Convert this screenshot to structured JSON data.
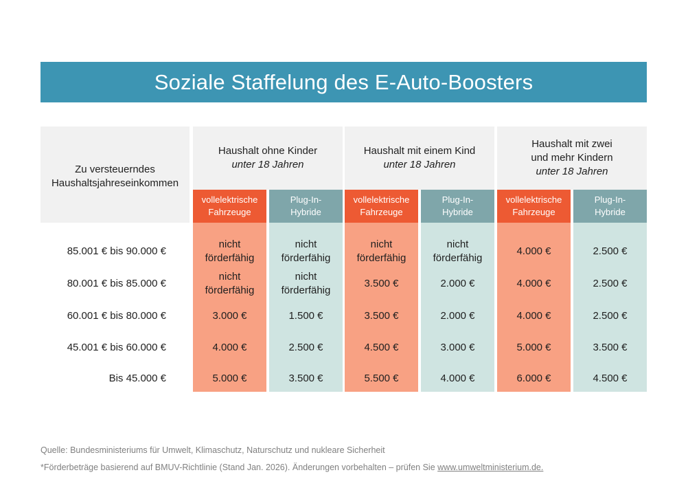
{
  "title": "Soziale Staffelung des E-Auto-Boosters",
  "income_header": [
    "Zu versteuerndes",
    "Haushaltsjahreseinkommen"
  ],
  "groups": [
    {
      "lines": [
        "Haushalt ohne Kinder"
      ],
      "sub": "unter 18 Jahren"
    },
    {
      "lines": [
        "Haushalt mit einem Kind"
      ],
      "sub": "unter 18 Jahren"
    },
    {
      "lines": [
        "Haushalt mit zwei",
        "und mehr Kindern"
      ],
      "sub": "unter 18 Jahren"
    }
  ],
  "sub_headers": {
    "bev": [
      "vollelektrische",
      "Fahrzeuge"
    ],
    "phev": [
      "Plug-In-",
      "Hybride"
    ]
  },
  "footer": {
    "source": "Quelle: Bundesministeriums für Umwelt, Klimaschutz, Naturschutz und nukleare Sicherheit",
    "note_prefix": "*Förderbeträge basierend auf BMUV-Richtlinie (Stand Jan. 2026). Änderungen vorbehalten – prüfen Sie ",
    "link": "www.umweltministerium.de."
  },
  "colors": {
    "title_bg": "#3d95b3",
    "bev_header": "#ed5a33",
    "phev_header": "#7fa6aa",
    "bev_cell": "#f8a183",
    "phev_cell": "#cfe4e1",
    "header_bg": "#f1f1f1"
  },
  "chart_data": {
    "type": "table",
    "title": "Soziale Staffelung des E-Auto-Boosters",
    "row_header": "Zu versteuerndes Haushaltsjahreseinkommen",
    "rows": [
      "85.001 € bis 90.000 €",
      "80.001 € bis 85.000 €",
      "60.001 € bis 80.000 €",
      "45.001 € bis 60.000 €",
      "Bis 45.000 €"
    ],
    "columns": [
      {
        "group": "Haushalt ohne Kinder unter 18 Jahren",
        "type": "vollelektrische Fahrzeuge",
        "values": [
          [
            "nicht",
            "förderfähig"
          ],
          [
            "nicht",
            "förderfähig"
          ],
          [
            "3.000 €"
          ],
          [
            "4.000 €"
          ],
          [
            "5.000 €"
          ]
        ]
      },
      {
        "group": "Haushalt ohne Kinder unter 18 Jahren",
        "type": "Plug-In-Hybride",
        "values": [
          [
            "nicht",
            "förderfähig"
          ],
          [
            "nicht",
            "förderfähig"
          ],
          [
            "1.500 €"
          ],
          [
            "2.500 €"
          ],
          [
            "3.500 €"
          ]
        ]
      },
      {
        "group": "Haushalt mit einem Kind unter 18 Jahren",
        "type": "vollelektrische Fahrzeuge",
        "values": [
          [
            "nicht",
            "förderfähig"
          ],
          [
            "3.500 €"
          ],
          [
            "3.500 €"
          ],
          [
            "4.500 €"
          ],
          [
            "5.500 €"
          ]
        ]
      },
      {
        "group": "Haushalt mit einem Kind unter 18 Jahren",
        "type": "Plug-In-Hybride",
        "values": [
          [
            "nicht",
            "förderfähig"
          ],
          [
            "2.000 €"
          ],
          [
            "2.000 €"
          ],
          [
            "3.000 €"
          ],
          [
            "4.000 €"
          ]
        ]
      },
      {
        "group": "Haushalt mit zwei und mehr Kindern unter 18 Jahren",
        "type": "vollelektrische Fahrzeuge",
        "values": [
          [
            "4.000 €"
          ],
          [
            "4.000 €"
          ],
          [
            "4.000 €"
          ],
          [
            "5.000 €"
          ],
          [
            "6.000 €"
          ]
        ]
      },
      {
        "group": "Haushalt mit zwei und mehr Kindern unter 18 Jahren",
        "type": "Plug-In-Hybride",
        "values": [
          [
            "2.500 €"
          ],
          [
            "2.500 €"
          ],
          [
            "2.500 €"
          ],
          [
            "3.500 €"
          ],
          [
            "4.500 €"
          ]
        ]
      }
    ]
  }
}
